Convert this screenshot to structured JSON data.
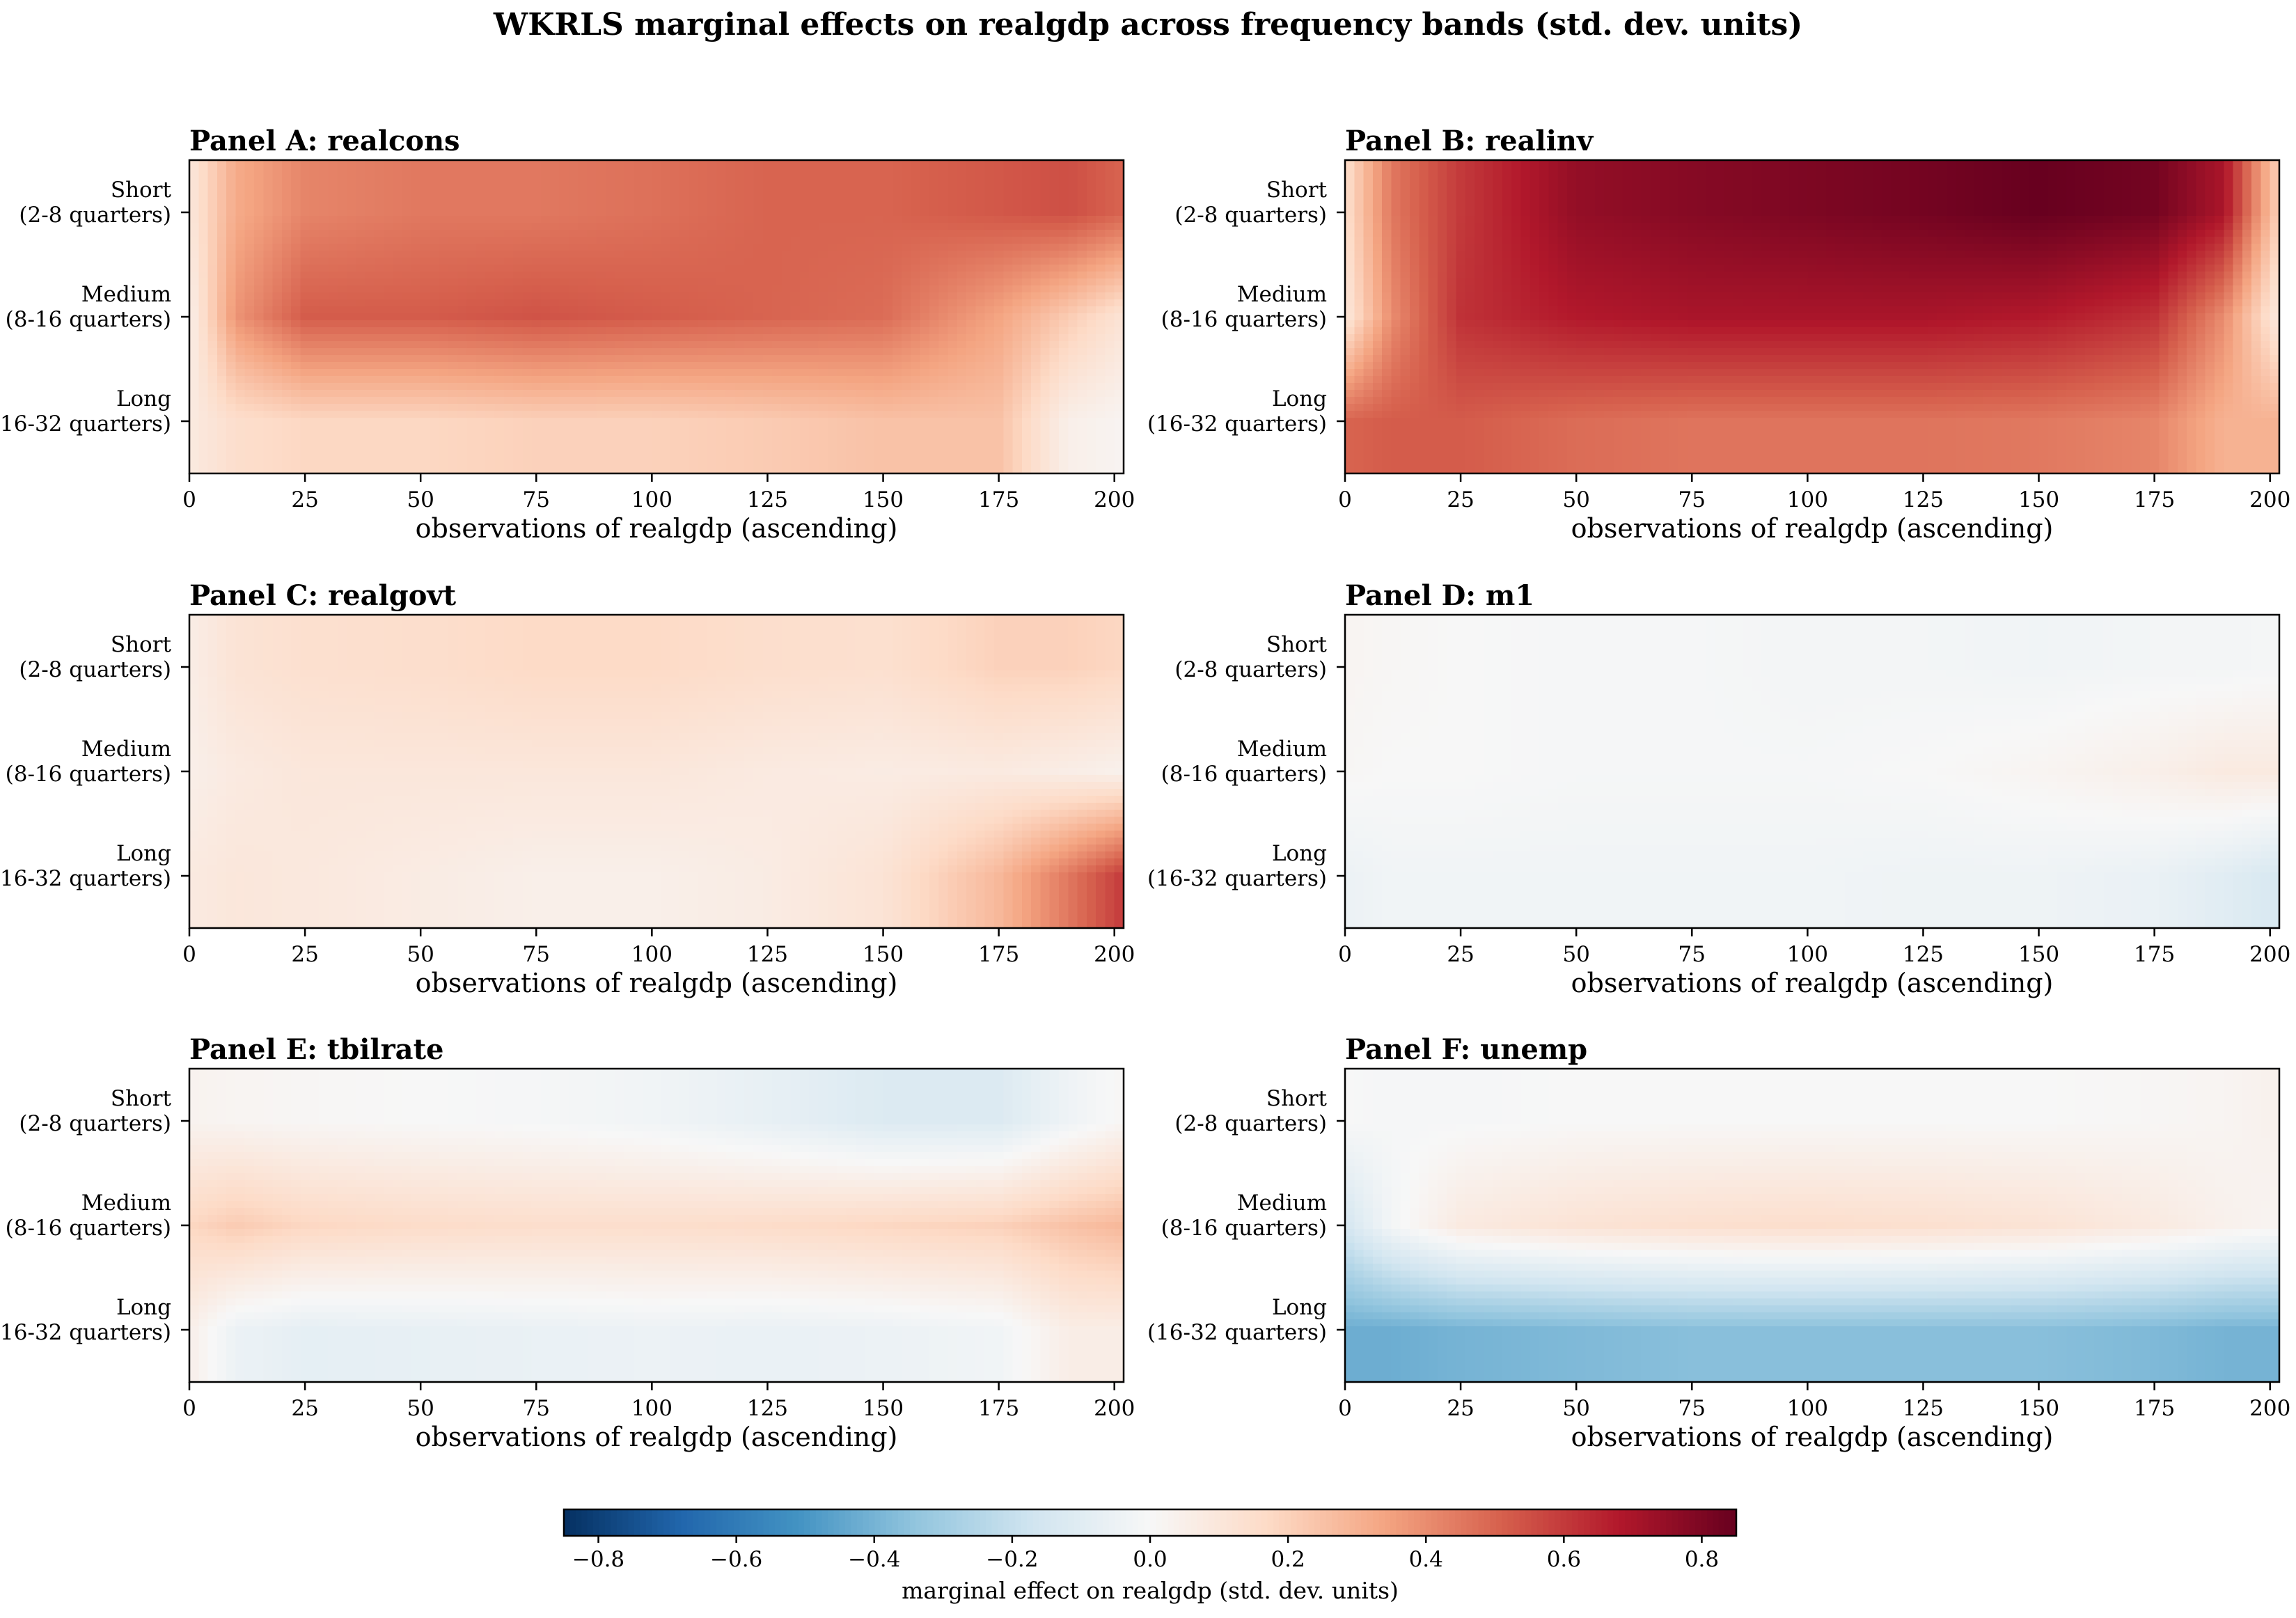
{
  "chart_data": {
    "type": "heatmap",
    "title": "WKRLS marginal effects on realgdp across frequency bands (std. dev. units)",
    "colormap": "RdBu_r",
    "clim": [
      -0.85,
      0.85
    ],
    "xlim": [
      0,
      202
    ],
    "x_ticks": [
      0,
      25,
      50,
      75,
      100,
      125,
      150,
      175,
      200
    ],
    "xlabel": "observations of realgdp (ascending)",
    "y_bands": [
      {
        "name": "Short",
        "range": "(2-8 quarters)"
      },
      {
        "name": "Medium",
        "range": "(8-16 quarters)"
      },
      {
        "name": "Long",
        "range": "(16-32 quarters)"
      }
    ],
    "x_sample": [
      0,
      10,
      25,
      50,
      75,
      100,
      125,
      150,
      175,
      190,
      202
    ],
    "colorbar": {
      "label": "marginal effect on realgdp (std. dev. units)",
      "ticks": [
        -0.8,
        -0.6,
        -0.4,
        -0.2,
        0.0,
        0.2,
        0.4,
        0.6,
        0.8
      ]
    },
    "panels": [
      {
        "title": "Panel A: realcons",
        "values": [
          [
            0.1,
            0.32,
            0.42,
            0.45,
            0.45,
            0.47,
            0.5,
            0.5,
            0.53,
            0.55,
            0.5
          ],
          [
            0.05,
            0.38,
            0.52,
            0.52,
            0.54,
            0.52,
            0.5,
            0.48,
            0.34,
            0.22,
            0.12
          ],
          [
            0.08,
            0.15,
            0.18,
            0.18,
            0.2,
            0.2,
            0.22,
            0.25,
            0.25,
            0.05,
            0.02
          ]
        ]
      },
      {
        "title": "Panel B: realinv",
        "values": [
          [
            0.15,
            0.45,
            0.6,
            0.75,
            0.78,
            0.8,
            0.82,
            0.85,
            0.82,
            0.7,
            0.2
          ],
          [
            0.1,
            0.4,
            0.62,
            0.68,
            0.7,
            0.7,
            0.7,
            0.68,
            0.62,
            0.4,
            0.08
          ],
          [
            0.5,
            0.52,
            0.52,
            0.48,
            0.46,
            0.46,
            0.46,
            0.45,
            0.42,
            0.3,
            0.3
          ]
        ]
      },
      {
        "title": "Panel C: realgovt",
        "values": [
          [
            0.06,
            0.12,
            0.14,
            0.15,
            0.17,
            0.17,
            0.15,
            0.14,
            0.2,
            0.2,
            0.18
          ],
          [
            0.05,
            0.08,
            0.1,
            0.1,
            0.1,
            0.1,
            0.08,
            0.07,
            0.08,
            0.06,
            0.04
          ],
          [
            0.08,
            0.1,
            0.09,
            0.07,
            0.05,
            0.05,
            0.07,
            0.12,
            0.28,
            0.45,
            0.6
          ]
        ]
      },
      {
        "title": "Panel D: m1",
        "values": [
          [
            0.02,
            0.01,
            0.0,
            -0.01,
            -0.01,
            -0.02,
            -0.02,
            -0.03,
            -0.02,
            -0.02,
            -0.01
          ],
          [
            0.01,
            0.0,
            0.0,
            -0.01,
            -0.01,
            -0.01,
            0.0,
            0.02,
            0.05,
            0.08,
            0.08
          ],
          [
            -0.05,
            -0.03,
            -0.03,
            -0.03,
            -0.03,
            -0.03,
            -0.04,
            -0.04,
            -0.06,
            -0.1,
            -0.14
          ]
        ]
      },
      {
        "title": "Panel E: tbilrate",
        "values": [
          [
            0.03,
            0.02,
            0.01,
            0.0,
            -0.01,
            -0.03,
            -0.07,
            -0.12,
            -0.12,
            -0.04,
            0.01
          ],
          [
            0.18,
            0.22,
            0.18,
            0.16,
            0.15,
            0.15,
            0.16,
            0.18,
            0.2,
            0.25,
            0.28
          ],
          [
            0.05,
            -0.05,
            -0.08,
            -0.07,
            -0.06,
            -0.05,
            -0.06,
            -0.05,
            -0.03,
            0.06,
            0.06
          ]
        ]
      },
      {
        "title": "Panel F: unemp",
        "values": [
          [
            0.0,
            -0.01,
            -0.01,
            0.0,
            0.0,
            0.0,
            0.0,
            0.0,
            0.01,
            0.02,
            0.04
          ],
          [
            -0.15,
            -0.02,
            0.08,
            0.12,
            0.14,
            0.15,
            0.14,
            0.12,
            0.08,
            0.04,
            0.02
          ],
          [
            -0.42,
            -0.42,
            -0.4,
            -0.38,
            -0.36,
            -0.36,
            -0.36,
            -0.36,
            -0.38,
            -0.4,
            -0.4
          ]
        ]
      }
    ]
  }
}
